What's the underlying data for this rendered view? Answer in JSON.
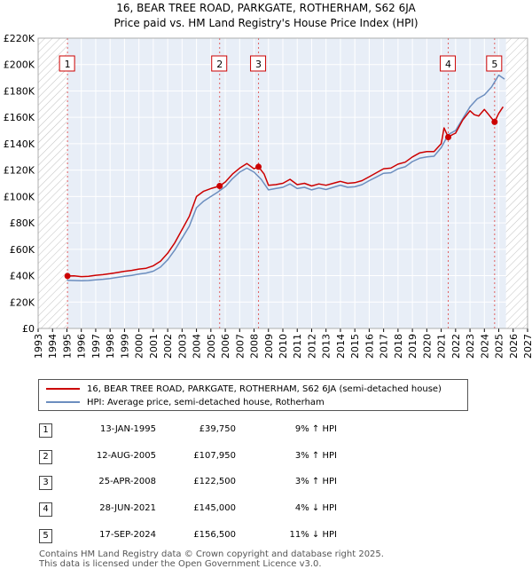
{
  "header": {
    "title": "16, BEAR TREE ROAD, PARKGATE, ROTHERHAM, S62 6JA",
    "subtitle": "Price paid vs. HM Land Registry's House Price Index (HPI)"
  },
  "chart_data": {
    "type": "line",
    "title": "16, BEAR TREE ROAD, PARKGATE, ROTHERHAM, S62 6JA",
    "subtitle": "Price paid vs. HM Land Registry's House Price Index (HPI)",
    "xlabel": "",
    "ylabel": "",
    "xlim": [
      1993,
      2027
    ],
    "ylim": [
      0,
      220000
    ],
    "y_ticks": [
      0,
      20000,
      40000,
      60000,
      80000,
      100000,
      120000,
      140000,
      160000,
      180000,
      200000,
      220000
    ],
    "y_tick_labels": [
      "£0",
      "£20K",
      "£40K",
      "£60K",
      "£80K",
      "£100K",
      "£120K",
      "£140K",
      "£160K",
      "£180K",
      "£200K",
      "£220K"
    ],
    "x_ticks": [
      1993,
      1994,
      1995,
      1996,
      1997,
      1998,
      1999,
      2000,
      2001,
      2002,
      2003,
      2004,
      2005,
      2006,
      2007,
      2008,
      2009,
      2010,
      2011,
      2012,
      2013,
      2014,
      2015,
      2016,
      2017,
      2018,
      2019,
      2020,
      2021,
      2022,
      2023,
      2024,
      2025,
      2026,
      2027
    ],
    "hatched_before": 1995.0,
    "hatched_after": 2025.5,
    "grid": true,
    "series": [
      {
        "name": "16, BEAR TREE ROAD, PARKGATE, ROTHERHAM, S62 6JA (semi-detached house)",
        "color": "#cc0000",
        "x": [
          1995.04,
          1995.5,
          1996,
          1996.5,
          1997,
          1997.5,
          1998,
          1998.5,
          1999,
          1999.5,
          2000,
          2000.5,
          2001,
          2001.5,
          2002,
          2002.5,
          2003,
          2003.5,
          2004,
          2004.5,
          2005,
          2005.3,
          2005.61,
          2006,
          2006.5,
          2007,
          2007.5,
          2008,
          2008.31,
          2008.7,
          2009,
          2009.5,
          2010,
          2010.5,
          2011,
          2011.5,
          2012,
          2012.5,
          2013,
          2013.5,
          2014,
          2014.5,
          2015,
          2015.5,
          2016,
          2016.5,
          2017,
          2017.5,
          2018,
          2018.5,
          2019,
          2019.5,
          2020,
          2020.5,
          2021,
          2021.2,
          2021.49,
          2021.8,
          2022,
          2022.5,
          2023,
          2023.3,
          2023.6,
          2024,
          2024.3,
          2024.71,
          2025,
          2025.3
        ],
        "y": [
          39750,
          39800,
          39300,
          39500,
          40300,
          40800,
          41500,
          42400,
          43300,
          44000,
          45000,
          45600,
          47500,
          51000,
          57000,
          65000,
          75000,
          85000,
          100000,
          104000,
          106000,
          107000,
          107950,
          111000,
          117000,
          121500,
          125000,
          121000,
          122500,
          117000,
          108500,
          109000,
          110000,
          113000,
          109000,
          110000,
          108000,
          109500,
          108500,
          110000,
          111500,
          110000,
          110500,
          112000,
          115000,
          118000,
          121000,
          121500,
          124500,
          126000,
          130000,
          133000,
          134000,
          134000,
          140000,
          152000,
          145000,
          147000,
          148000,
          158000,
          165000,
          162000,
          161000,
          166000,
          162000,
          156500,
          163000,
          168000
        ]
      },
      {
        "name": "HPI: Average price, semi-detached house, Rotherham",
        "color": "#6c8ebf",
        "x": [
          1995,
          1995.5,
          1996,
          1996.5,
          1997,
          1997.5,
          1998,
          1998.5,
          1999,
          1999.5,
          2000,
          2000.5,
          2001,
          2001.5,
          2002,
          2002.5,
          2003,
          2003.5,
          2004,
          2004.5,
          2005,
          2005.5,
          2006,
          2006.5,
          2007,
          2007.5,
          2008,
          2008.5,
          2009,
          2009.5,
          2010,
          2010.5,
          2011,
          2011.5,
          2012,
          2012.5,
          2013,
          2013.5,
          2014,
          2014.5,
          2015,
          2015.5,
          2016,
          2016.5,
          2017,
          2017.5,
          2018,
          2018.5,
          2019,
          2019.5,
          2020,
          2020.5,
          2021,
          2021.5,
          2022,
          2022.5,
          2023,
          2023.5,
          2024,
          2024.5,
          2025,
          2025.4
        ],
        "y": [
          36500,
          36300,
          36100,
          36300,
          36900,
          37300,
          37900,
          38700,
          39500,
          40200,
          41200,
          42000,
          43400,
          46500,
          52000,
          59500,
          68500,
          77500,
          91500,
          96500,
          100000,
          103500,
          107500,
          113500,
          118500,
          121500,
          118500,
          113000,
          105000,
          106000,
          107000,
          109500,
          106000,
          107000,
          105000,
          106500,
          105300,
          107000,
          108600,
          107000,
          107400,
          109000,
          112000,
          114800,
          117600,
          118000,
          121000,
          122500,
          126500,
          129000,
          130000,
          130500,
          137000,
          147000,
          150000,
          159000,
          168000,
          174000,
          177000,
          183000,
          192000,
          189000
        ]
      }
    ],
    "sale_points": [
      {
        "marker": "1",
        "x": 1995.04,
        "y": 39750
      },
      {
        "marker": "2",
        "x": 2005.61,
        "y": 107950
      },
      {
        "marker": "3",
        "x": 2008.31,
        "y": 122500
      },
      {
        "marker": "4",
        "x": 2021.49,
        "y": 145000
      },
      {
        "marker": "5",
        "x": 2024.71,
        "y": 156500
      }
    ]
  },
  "legend": {
    "items": [
      {
        "label": "16, BEAR TREE ROAD, PARKGATE, ROTHERHAM, S62 6JA (semi-detached house)",
        "color": "#cc0000"
      },
      {
        "label": "HPI: Average price, semi-detached house, Rotherham",
        "color": "#6c8ebf"
      }
    ]
  },
  "transactions": [
    {
      "num": "1",
      "date": "13-JAN-1995",
      "price": "£39,750",
      "hpi": "9% ↑ HPI"
    },
    {
      "num": "2",
      "date": "12-AUG-2005",
      "price": "£107,950",
      "hpi": "3% ↑ HPI"
    },
    {
      "num": "3",
      "date": "25-APR-2008",
      "price": "£122,500",
      "hpi": "3% ↑ HPI"
    },
    {
      "num": "4",
      "date": "28-JUN-2021",
      "price": "£145,000",
      "hpi": "4% ↓ HPI"
    },
    {
      "num": "5",
      "date": "17-SEP-2024",
      "price": "£156,500",
      "hpi": "11% ↓ HPI"
    }
  ],
  "footer": {
    "line1": "Contains HM Land Registry data © Crown copyright and database right 2025.",
    "line2": "This data is licensed under the Open Government Licence v3.0."
  }
}
